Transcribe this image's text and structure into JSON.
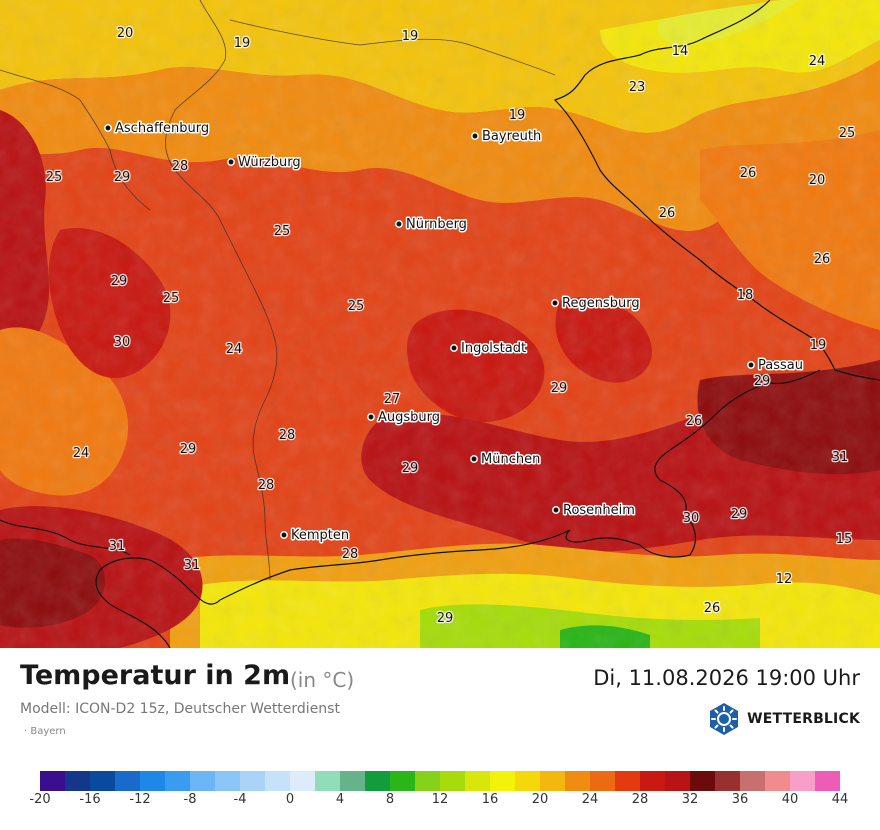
{
  "title": "Temperatur in 2m",
  "unit": "(in °C)",
  "datetime": "Di, 11.08.2026 19:00 Uhr",
  "model": "Modell: ICON-D2 15z, Deutscher Wetterdienst",
  "region": "Bayern",
  "brand": "WETTERBLICK",
  "cities": [
    {
      "name": "Aschaffenburg"
    },
    {
      "name": "Würzburg"
    },
    {
      "name": "Bayreuth"
    },
    {
      "name": "Nürnberg"
    },
    {
      "name": "Regensburg"
    },
    {
      "name": "Ingolstadt"
    },
    {
      "name": "Passau"
    },
    {
      "name": "Augsburg"
    },
    {
      "name": "München"
    },
    {
      "name": "Rosenheim"
    },
    {
      "name": "Kempten"
    }
  ],
  "values": [
    "20",
    "19",
    "19",
    "14",
    "24",
    "23",
    "25",
    "19",
    "25",
    "29",
    "28",
    "26",
    "20",
    "26",
    "25",
    "26",
    "29",
    "25",
    "25",
    "18",
    "30",
    "24",
    "19",
    "27",
    "29",
    "29",
    "24",
    "29",
    "28",
    "26",
    "29",
    "31",
    "28",
    "30",
    "29",
    "15",
    "31",
    "31",
    "28",
    "12",
    "29",
    "26"
  ],
  "legend": {
    "colors": [
      "#3a0f8f",
      "#14378c",
      "#0a4a9e",
      "#1a6acb",
      "#1f87e8",
      "#3a9cf0",
      "#6cb6f5",
      "#8cc6f6",
      "#a9d4f7",
      "#c6e2f9",
      "#dcecfb",
      "#93dcb9",
      "#66b28a",
      "#139c3c",
      "#2ab518",
      "#86d21a",
      "#a6dc0c",
      "#d8e60c",
      "#f3f20a",
      "#f5d80c",
      "#f3b80d",
      "#f08c12",
      "#ec6a12",
      "#e53a0f",
      "#c81a13",
      "#b81416",
      "#6d0a0a",
      "#983030",
      "#c87070",
      "#f28b8b",
      "#f79fc9",
      "#ef5cb8"
    ],
    "ticks": [
      "-20",
      "-16",
      "-12",
      "-8",
      "-4",
      "0",
      "4",
      "8",
      "12",
      "16",
      "20",
      "24",
      "28",
      "32",
      "36",
      "40",
      "44"
    ]
  }
}
